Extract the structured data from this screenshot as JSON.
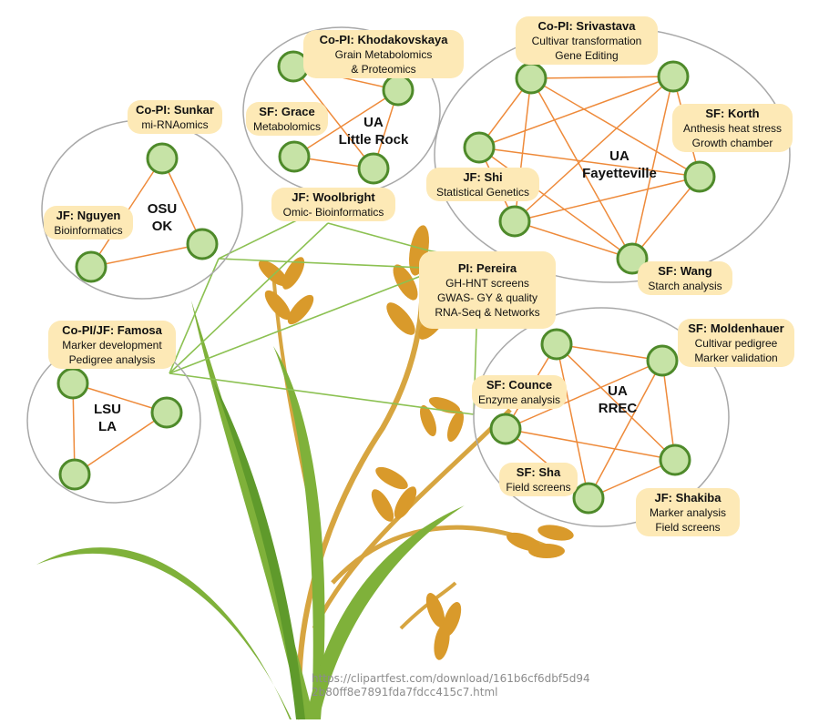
{
  "sites": {
    "osu": {
      "line1": "OSU",
      "line2": "OK"
    },
    "ua_lr": {
      "line1": "UA",
      "line2": "Little Rock"
    },
    "ua_fay": {
      "line1": "UA",
      "line2": "Fayetteville"
    },
    "lsu": {
      "line1": "LSU",
      "line2": "LA"
    },
    "ua_rrec": {
      "line1": "UA",
      "line2": "RREC"
    }
  },
  "labels": {
    "khodakovskaya": {
      "title": "Co-PI: Khodakovskaya",
      "lines": [
        "Grain Metabolomics",
        "& Proteomics"
      ]
    },
    "srivastava": {
      "title": "Co-PI: Srivastava",
      "lines": [
        "Cultivar transformation",
        "Gene Editing"
      ]
    },
    "sunkar": {
      "title": "Co-PI: Sunkar",
      "lines": [
        "mi-RNAomics"
      ]
    },
    "grace": {
      "title": "SF: Grace",
      "lines": [
        "Metabolomics"
      ]
    },
    "korth": {
      "title": "SF: Korth",
      "lines": [
        "Anthesis heat stress",
        "Growth chamber"
      ]
    },
    "shi": {
      "title": "JF: Shi",
      "lines": [
        "Statistical Genetics"
      ]
    },
    "woolbright": {
      "title": "JF: Woolbright",
      "lines": [
        "Omic- Bioinformatics"
      ]
    },
    "nguyen": {
      "title": "JF: Nguyen",
      "lines": [
        "Bioinformatics"
      ]
    },
    "pereira": {
      "title": "PI: Pereira",
      "lines": [
        "GH-HNT screens",
        "GWAS- GY & quality",
        "RNA-Seq & Networks"
      ]
    },
    "wang": {
      "title": "SF: Wang",
      "lines": [
        "Starch analysis"
      ]
    },
    "famosa": {
      "title": "Co-PI/JF: Famosa",
      "lines": [
        "Marker development",
        "Pedigree analysis"
      ]
    },
    "moldenhauer": {
      "title": "SF: Moldenhauer",
      "lines": [
        "Cultivar pedigree",
        "Marker validation"
      ]
    },
    "counce": {
      "title": "SF: Counce",
      "lines": [
        "Enzyme analysis"
      ]
    },
    "sha": {
      "title": "SF: Sha",
      "lines": [
        "Field screens"
      ]
    },
    "shakiba": {
      "title": "JF: Shakiba",
      "lines": [
        "Marker analysis",
        "Field screens"
      ]
    }
  },
  "source": {
    "line1": "https://clipartfest.com/download/161b6cf6dbf5d94",
    "line2": "2b80ff8e7891fda7fdcc415c7.html"
  },
  "colors": {
    "node_fill": "#c6e3a6",
    "node_stroke": "#4e8a2a",
    "intra_link": "#ee8a3a",
    "inter_link": "#8cc152",
    "label_bg": "#fde9b6",
    "cluster_border": "#a8a8a8",
    "wheat": "#d7a540",
    "leaf": "#7fb13a"
  }
}
